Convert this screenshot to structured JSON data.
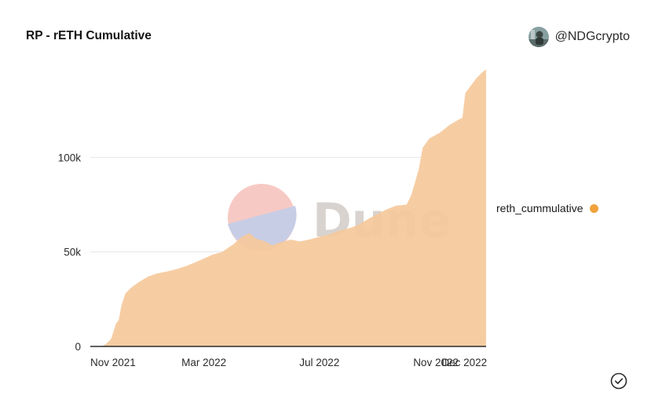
{
  "header": {
    "title": "RP - rETH Cumulative",
    "author": "@NDGcrypto"
  },
  "watermark": {
    "text": "Dune"
  },
  "colors": {
    "area_fill": "#f5c99b",
    "legend_dot": "#f0a23c",
    "gridline": "#e6e6e6",
    "baseline": "#2b2b2b",
    "watermark_circle_top": "#f7c9c4",
    "watermark_circle_bottom": "#c8cde6",
    "watermark_text": "#d8d3cf"
  },
  "icons": {
    "avatar": "avatar-icon",
    "verified": "check-circle-icon"
  },
  "chart_data": {
    "type": "area",
    "title": "RP - rETH Cumulative",
    "xlabel": "",
    "ylabel": "",
    "x_ticks": [
      "Nov 2021",
      "Mar 2022",
      "Jul 2022",
      "Nov 2022",
      "Dec 2022"
    ],
    "y_ticks": [
      "0",
      "50k",
      "100k"
    ],
    "ylim": [
      0,
      150000
    ],
    "grid": true,
    "legend_position": "right",
    "series": [
      {
        "name": "reth_cummulative",
        "color": "#f0a23c",
        "points": [
          [
            "2021-11-01",
            0
          ],
          [
            "2021-11-13",
            0
          ],
          [
            "2021-11-18",
            1500
          ],
          [
            "2021-11-23",
            4000
          ],
          [
            "2021-11-28",
            12000
          ],
          [
            "2021-12-01",
            14000
          ],
          [
            "2021-12-04",
            22000
          ],
          [
            "2021-12-08",
            28000
          ],
          [
            "2021-12-14",
            31000
          ],
          [
            "2021-12-22",
            34000
          ],
          [
            "2022-01-01",
            37000
          ],
          [
            "2022-01-10",
            38500
          ],
          [
            "2022-01-20",
            39500
          ],
          [
            "2022-02-01",
            41000
          ],
          [
            "2022-02-10",
            42500
          ],
          [
            "2022-02-20",
            44500
          ],
          [
            "2022-03-01",
            46500
          ],
          [
            "2022-03-10",
            48500
          ],
          [
            "2022-03-20",
            50000
          ],
          [
            "2022-04-01",
            54000
          ],
          [
            "2022-04-10",
            58000
          ],
          [
            "2022-04-18",
            60000
          ],
          [
            "2022-04-25",
            57000
          ],
          [
            "2022-05-05",
            55500
          ],
          [
            "2022-05-12",
            53500
          ],
          [
            "2022-05-20",
            55000
          ],
          [
            "2022-06-01",
            56500
          ],
          [
            "2022-06-10",
            55500
          ],
          [
            "2022-06-20",
            56500
          ],
          [
            "2022-07-01",
            58000
          ],
          [
            "2022-07-10",
            59000
          ],
          [
            "2022-07-20",
            61000
          ],
          [
            "2022-08-01",
            62500
          ],
          [
            "2022-08-10",
            64000
          ],
          [
            "2022-08-20",
            67000
          ],
          [
            "2022-08-31",
            70000
          ],
          [
            "2022-09-10",
            72500
          ],
          [
            "2022-09-20",
            74500
          ],
          [
            "2022-10-01",
            75000
          ],
          [
            "2022-10-06",
            80000
          ],
          [
            "2022-10-10",
            87000
          ],
          [
            "2022-10-14",
            94000
          ],
          [
            "2022-10-18",
            105000
          ],
          [
            "2022-10-25",
            110000
          ],
          [
            "2022-11-05",
            113000
          ],
          [
            "2022-11-15",
            117000
          ],
          [
            "2022-11-25",
            120000
          ],
          [
            "2022-11-29",
            121000
          ],
          [
            "2022-12-02",
            134000
          ],
          [
            "2022-12-08",
            138000
          ],
          [
            "2022-12-14",
            142000
          ],
          [
            "2022-12-20",
            145000
          ],
          [
            "2022-12-24",
            146500
          ]
        ]
      }
    ]
  },
  "legend": {
    "label": "reth_cummulative"
  }
}
